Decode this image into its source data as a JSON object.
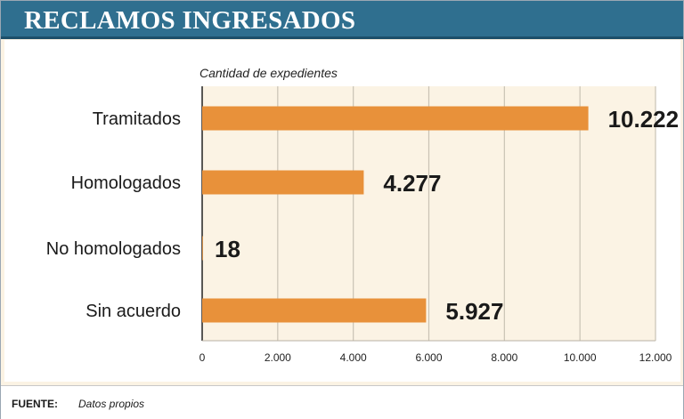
{
  "header": {
    "title": "RECLAMOS INGRESADOS"
  },
  "chart_data": {
    "type": "bar",
    "orientation": "horizontal",
    "title": "RECLAMOS INGRESADOS",
    "subtitle": "Cantidad de expedientes",
    "categories": [
      "Tramitados",
      "Homologados",
      "No homologados",
      "Sin acuerdo"
    ],
    "values": [
      10222,
      4277,
      18,
      5927
    ],
    "value_labels": [
      "10.222",
      "4.277",
      "18",
      "5.927"
    ],
    "x_ticks": [
      0,
      2000,
      4000,
      6000,
      8000,
      10000,
      12000
    ],
    "x_tick_labels": [
      "0",
      "2.000",
      "4.000",
      "6.000",
      "8.000",
      "10.000",
      "12.000"
    ],
    "xlim": [
      0,
      12000
    ],
    "grid": true,
    "legend": "none",
    "colors": {
      "bar": "#e8913a",
      "background": "#fbf3e4",
      "grid": "#c9c2b4",
      "header": "#2f6f8f"
    }
  },
  "footer": {
    "label": "FUENTE:",
    "value": "Datos propios"
  }
}
